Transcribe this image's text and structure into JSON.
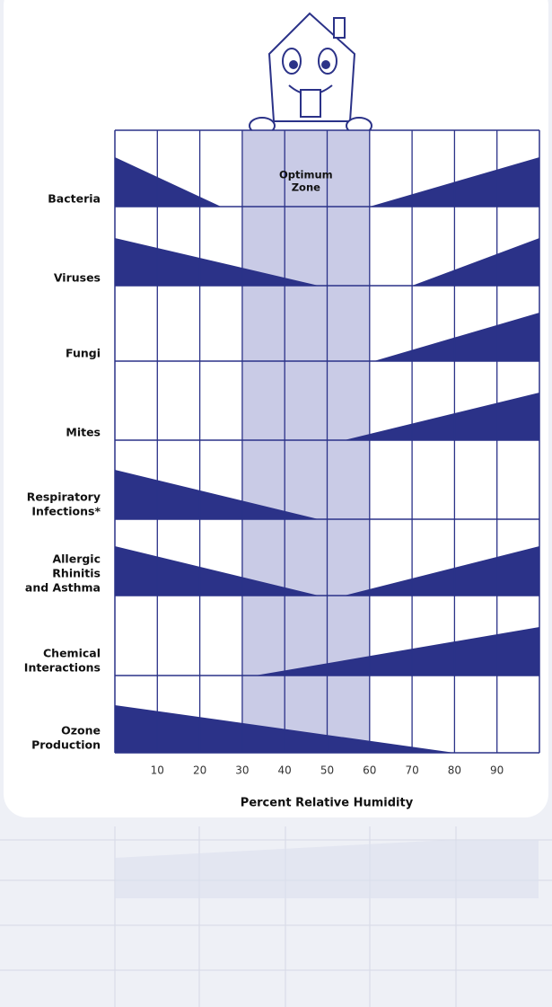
{
  "chart_data": {
    "type": "humidity-wedges",
    "x_label": "Percent Relative Humidity",
    "xlim": [
      0,
      100
    ],
    "xticks": [
      10,
      20,
      30,
      40,
      50,
      60,
      70,
      80,
      90
    ],
    "color": "#2b3288",
    "optimum_zone": {
      "range": [
        30,
        60
      ],
      "label": [
        "Optimum",
        "Zone"
      ],
      "color": "#c9cbe6"
    },
    "categories": [
      [
        "Bacteria"
      ],
      [
        "Viruses"
      ],
      [
        "Fungi"
      ],
      [
        "Mites"
      ],
      [
        "Respiratory",
        "Infections*"
      ],
      [
        "Allergic",
        "Rhinitis",
        "and Asthma"
      ],
      [
        "Chemical",
        "Interactions"
      ],
      [
        "Ozone",
        "Production"
      ]
    ],
    "left_wedge_end": [
      25,
      48,
      null,
      null,
      48,
      48,
      null,
      80
    ],
    "right_wedge_start": [
      60,
      70,
      61,
      54,
      null,
      54,
      33,
      null
    ]
  }
}
